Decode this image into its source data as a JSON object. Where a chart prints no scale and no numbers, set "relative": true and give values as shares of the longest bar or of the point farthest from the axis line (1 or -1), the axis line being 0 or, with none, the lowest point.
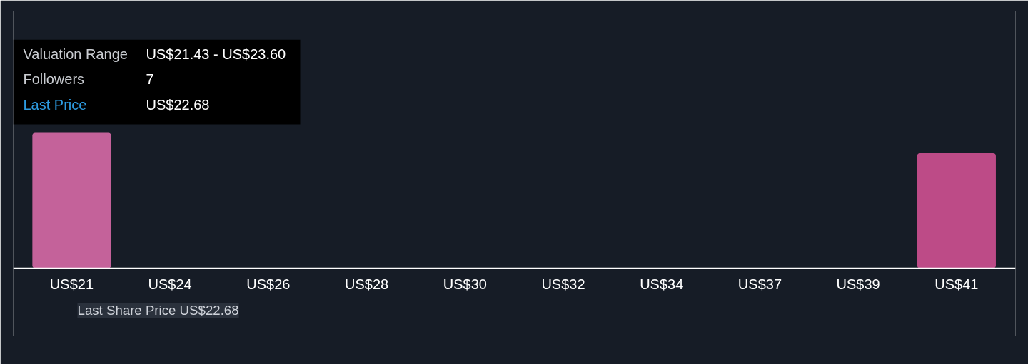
{
  "chart_data": {
    "type": "bar",
    "relative": true,
    "categories": [
      "US$21",
      "US$24",
      "US$26",
      "US$28",
      "US$30",
      "US$32",
      "US$34",
      "US$37",
      "US$39",
      "US$41"
    ],
    "values": [
      1,
      0,
      0,
      0,
      0,
      0,
      0,
      0,
      0,
      0.85
    ],
    "colors": [
      "#c4629a",
      "#c4629a",
      "#c4629a",
      "#c4629a",
      "#c4629a",
      "#c4629a",
      "#c4629a",
      "#c4629a",
      "#c4629a",
      "#bd4b87"
    ],
    "annotations": [
      "Valuation Range",
      "US$21.43 - US$23.60",
      "Followers",
      "7",
      "Last Price",
      "US$22.68",
      "Last Share Price",
      "US$22.68"
    ],
    "grid": false
  }
}
